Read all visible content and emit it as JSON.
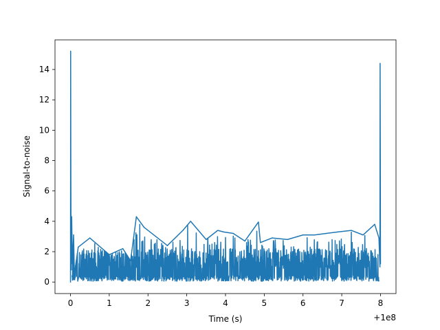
{
  "chart_data": {
    "type": "line",
    "title": "",
    "xlabel": "Time (s)",
    "ylabel": "Signal-to-noise",
    "x_offset_label": "+1e8",
    "xlim": [
      -0.4,
      8.4
    ],
    "ylim": [
      -0.76,
      15.95
    ],
    "grid": false,
    "legend": "none",
    "x_ticks": [
      0,
      1,
      2,
      3,
      4,
      5,
      6,
      7,
      8
    ],
    "x_tick_labels": [
      "0",
      "1",
      "2",
      "3",
      "4",
      "5",
      "6",
      "7",
      "8"
    ],
    "y_ticks": [
      0,
      2,
      4,
      6,
      8,
      10,
      12,
      14
    ],
    "y_tick_labels": [
      "0",
      "2",
      "4",
      "6",
      "8",
      "10",
      "12",
      "14"
    ],
    "series": [
      {
        "color": "#1f77b4",
        "x": [
          0.0,
          0.004,
          0.008,
          0.012,
          0.016,
          0.02,
          0.03,
          0.05,
          0.08,
          0.1,
          0.2,
          0.5,
          1.0,
          1.35,
          1.55,
          1.7,
          1.9,
          2.5,
          2.9,
          3.1,
          3.5,
          3.8,
          3.95,
          4.2,
          4.5,
          4.85,
          4.9,
          5.2,
          5.6,
          6.0,
          6.3,
          6.6,
          6.9,
          7.25,
          7.55,
          7.85,
          7.96,
          7.985,
          7.99,
          7.995,
          8.0
        ],
        "y": [
          0.0,
          15.2,
          8.0,
          4.3,
          1.5,
          0.8,
          4.3,
          1.2,
          3.1,
          0.5,
          2.3,
          2.9,
          1.8,
          2.2,
          1.4,
          4.3,
          3.6,
          2.4,
          3.4,
          4.0,
          2.8,
          3.4,
          3.3,
          3.2,
          2.7,
          3.95,
          2.6,
          2.9,
          2.8,
          3.1,
          3.1,
          3.2,
          3.3,
          3.4,
          3.1,
          3.8,
          2.9,
          1.0,
          14.4,
          8.0,
          1.2
        ]
      }
    ]
  }
}
